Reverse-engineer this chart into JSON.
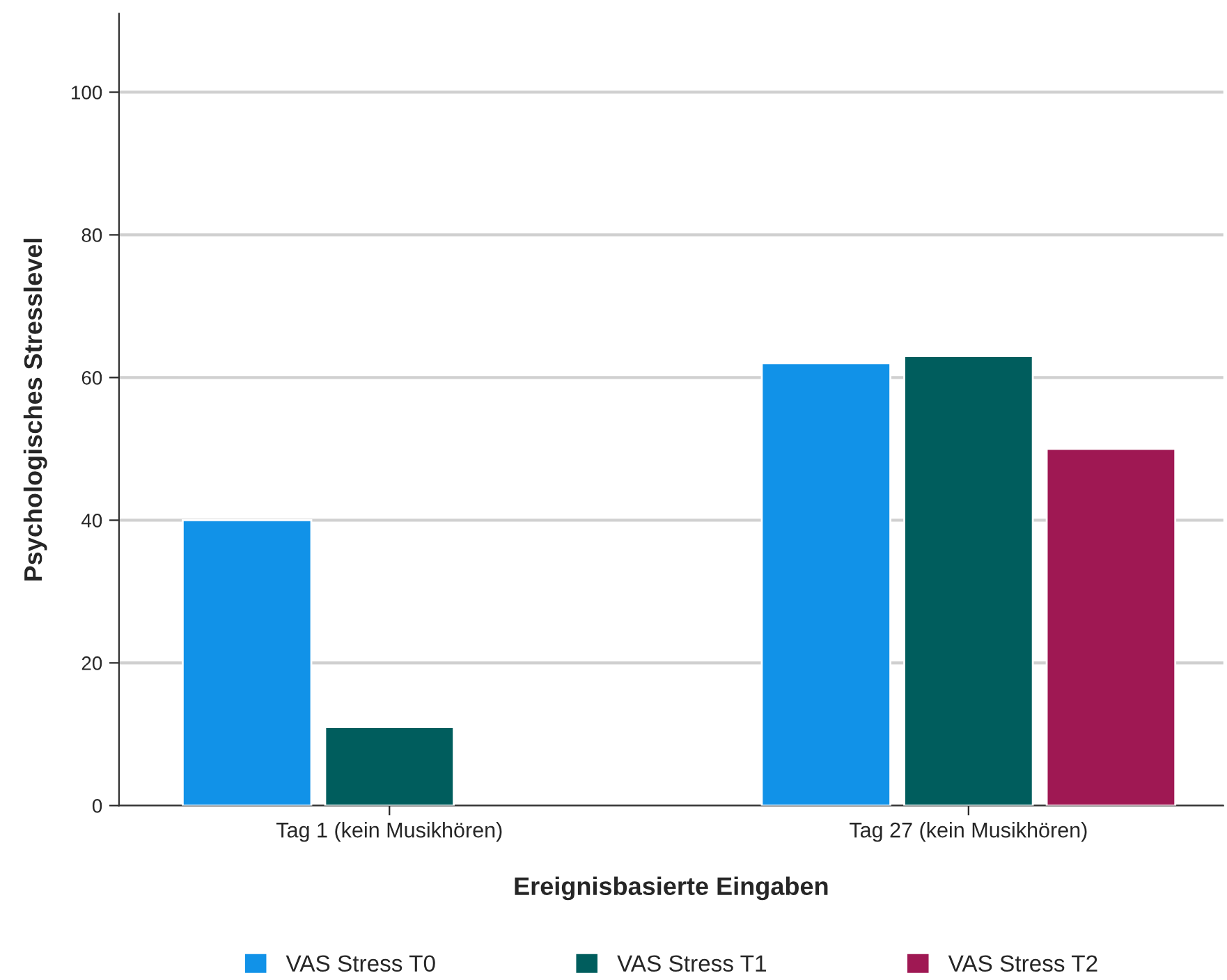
{
  "chart_data": {
    "type": "bar",
    "xlabel": "Ereignisbasierte Eingaben",
    "ylabel": "Psychologisches Stresslevel",
    "categories": [
      "Tag 1 (kein Musikhören)",
      "Tag 27 (kein Musikhören)"
    ],
    "series": [
      {
        "name": "VAS Stress T0",
        "color": "#1192e8",
        "values": [
          40,
          62
        ]
      },
      {
        "name": "VAS Stress T1",
        "color": "#005d5d",
        "values": [
          11,
          63
        ]
      },
      {
        "name": "VAS Stress T2",
        "color": "#9f1853",
        "values": [
          null,
          50
        ]
      }
    ],
    "ylim": [
      0,
      111
    ],
    "yticks": [
      0,
      20,
      40,
      60,
      80,
      100
    ],
    "grid": "y",
    "legend": "bottom"
  }
}
